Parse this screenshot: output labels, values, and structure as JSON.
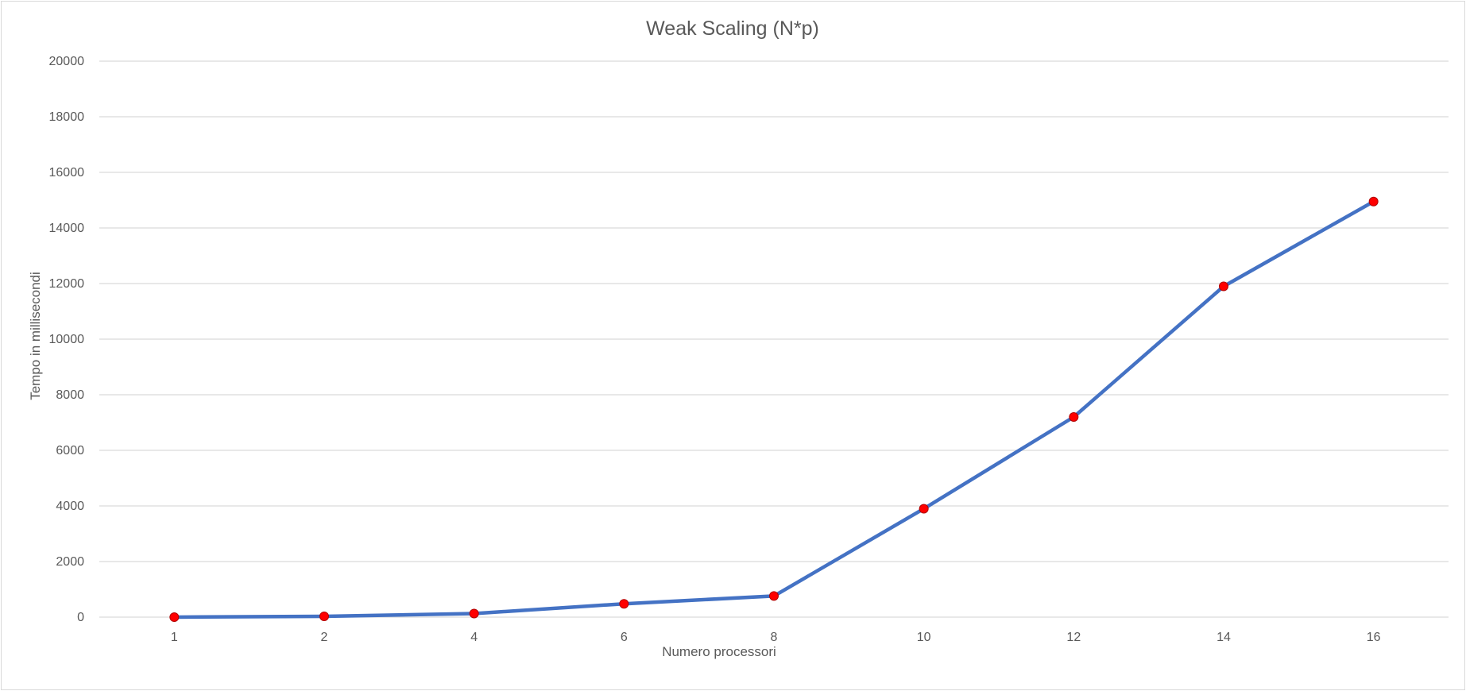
{
  "chart_data": {
    "type": "line",
    "title": "Weak Scaling (N*p)",
    "xlabel": "Numero processori",
    "ylabel": "Tempo in millisecondi",
    "categories": [
      "1",
      "2",
      "4",
      "6",
      "8",
      "10",
      "12",
      "14",
      "16"
    ],
    "series": [
      {
        "values": [
          0,
          30,
          130,
          480,
          760,
          3900,
          7200,
          11900,
          14950
        ],
        "line_color": "#4472c4",
        "marker_color": "#ff0000"
      }
    ],
    "ylim": [
      0,
      20000
    ],
    "yticks": [
      "0",
      "2000",
      "4000",
      "6000",
      "8000",
      "10000",
      "12000",
      "14000",
      "16000",
      "18000",
      "20000"
    ],
    "grid": true,
    "legend": "none"
  }
}
